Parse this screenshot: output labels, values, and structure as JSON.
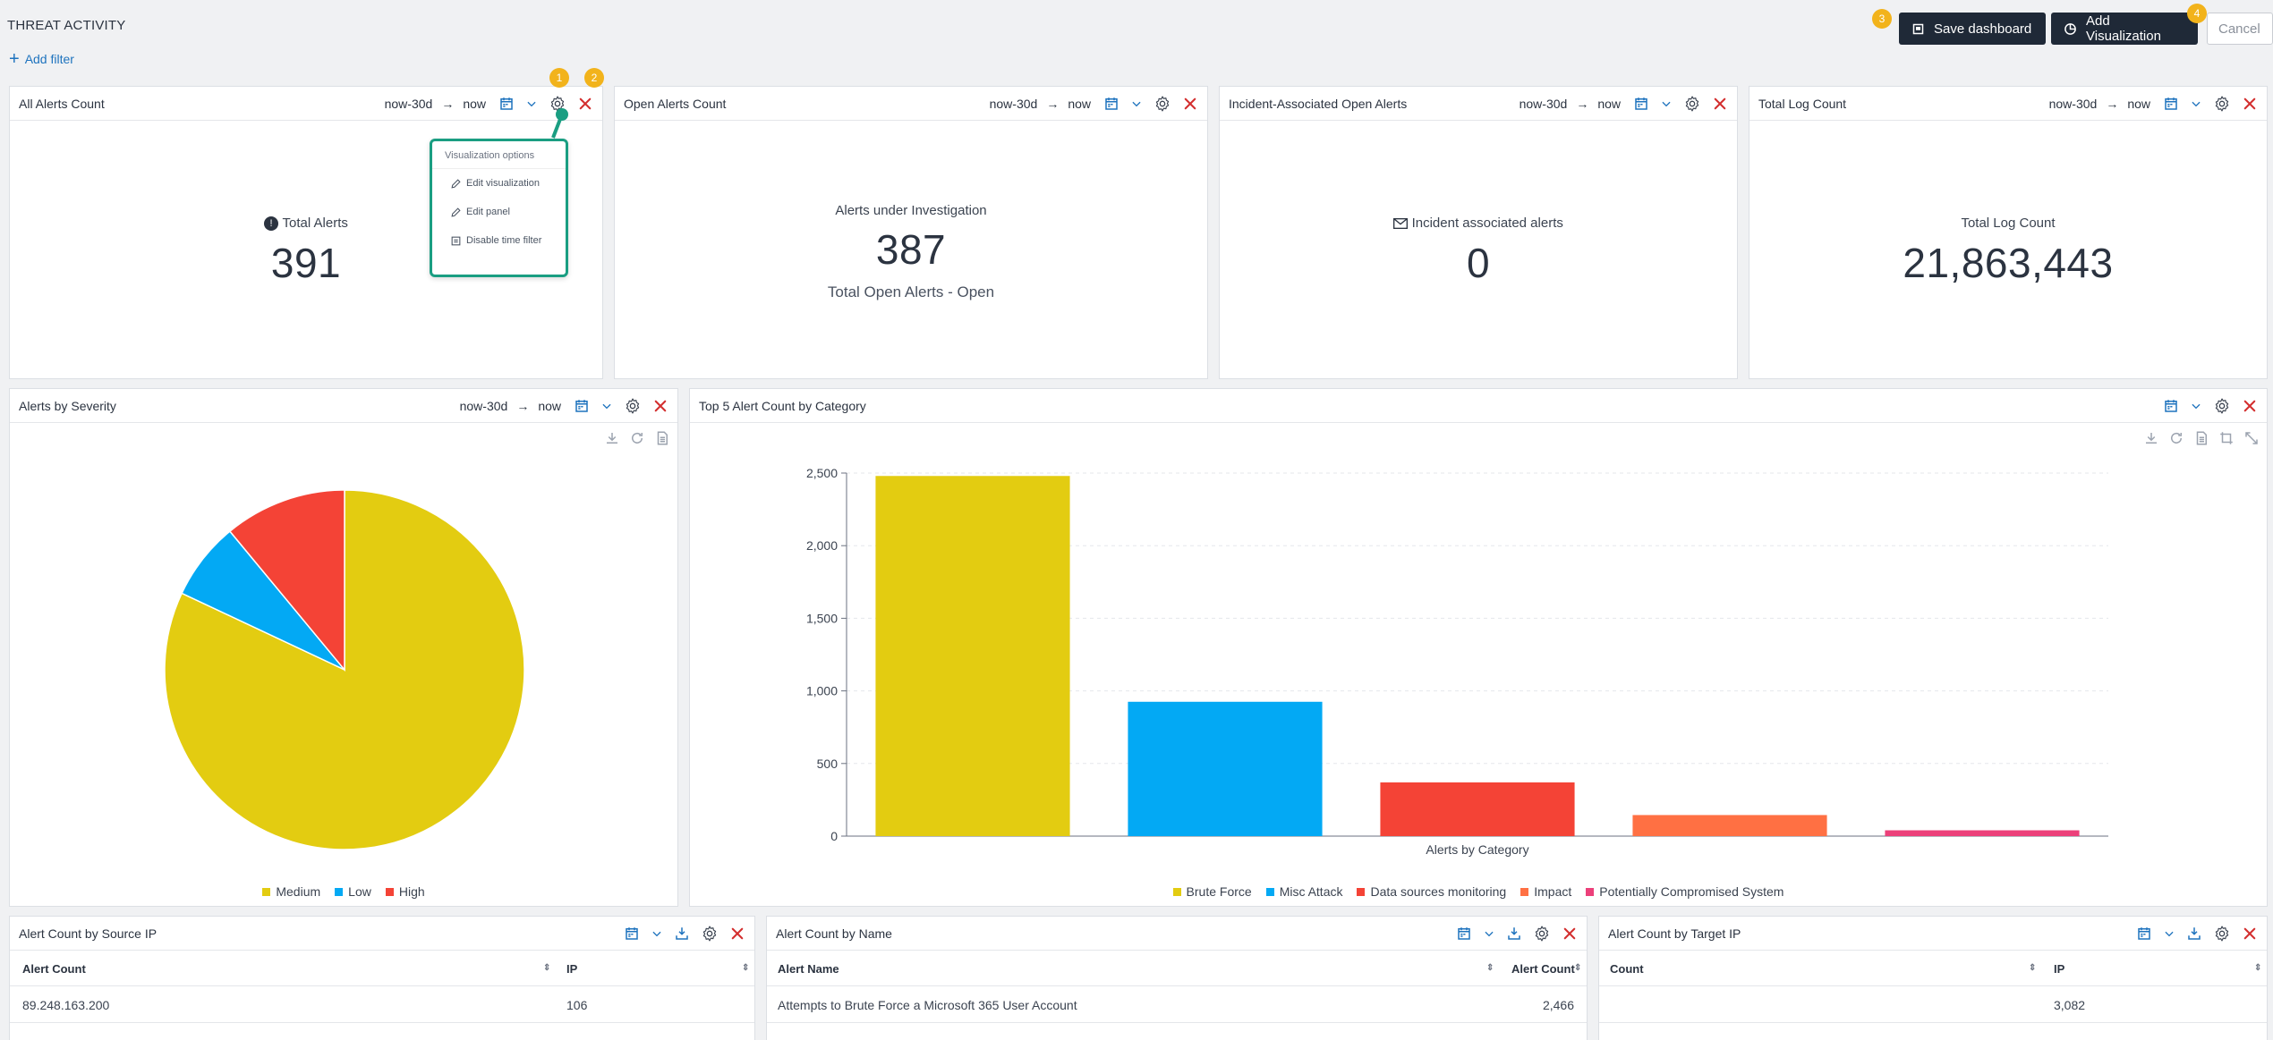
{
  "header": {
    "title": "THREAT ACTIVITY",
    "add_filter": "Add filter",
    "save_dashboard": "Save dashboard",
    "add_visualization": "Add Visualization",
    "cancel": "Cancel",
    "badges": [
      "1",
      "2",
      "3",
      "4"
    ]
  },
  "time": {
    "from": "now-30d",
    "arrow": "→",
    "to": "now"
  },
  "panels": {
    "all_alerts": {
      "title": "All Alerts Count",
      "label": "Total Alerts",
      "value": "391"
    },
    "open_alerts": {
      "title": "Open Alerts Count",
      "label": "Alerts under Investigation",
      "value": "387",
      "sub": "Total Open Alerts - Open"
    },
    "incident_alerts": {
      "title": "Incident-Associated Open Alerts",
      "label": "Incident associated alerts",
      "value": "0"
    },
    "log_count": {
      "title": "Total Log Count",
      "label": "Total Log Count",
      "value": "21,863,443"
    },
    "severity": {
      "title": "Alerts by Severity"
    },
    "top5": {
      "title": "Top 5 Alert Count by Category"
    },
    "by_source_ip": {
      "title": "Alert Count by Source IP",
      "columns": [
        "Alert Count",
        "IP"
      ],
      "rows": [
        [
          "89.248.163.200",
          "106"
        ]
      ]
    },
    "by_name": {
      "title": "Alert Count by Name",
      "columns": [
        "Alert Name",
        "Alert Count"
      ],
      "rows": [
        [
          "Attempts to Brute Force a Microsoft 365 User Account",
          "2,466"
        ]
      ]
    },
    "by_target_ip": {
      "title": "Alert Count by Target IP",
      "columns": [
        "Count",
        "IP"
      ],
      "rows": [
        [
          "",
          "3,082"
        ]
      ]
    }
  },
  "viz_menu": {
    "header": "Visualization options",
    "items": [
      "Edit visualization",
      "Edit panel",
      "Disable time filter"
    ]
  },
  "colors": {
    "accent": "#1e73be",
    "close": "#d32f2f",
    "menu_border": "#1a9e82",
    "badge": "#f2b31b"
  },
  "chart_data": [
    {
      "type": "pie",
      "title": "Alerts by Severity",
      "categories": [
        "Medium",
        "Low",
        "High"
      ],
      "values": [
        82,
        7,
        11
      ],
      "colors": [
        "#e3cc11",
        "#03a9f4",
        "#f44336"
      ],
      "legend": "bottom"
    },
    {
      "type": "bar",
      "title": "Top 5 Alert Count by Category",
      "xlabel": "Alerts by Category",
      "ylabel": "",
      "categories": [
        "Brute Force",
        "Misc Attack",
        "Data sources monitoring",
        "Impact",
        "Potentially Compromised System"
      ],
      "values": [
        2480,
        925,
        370,
        145,
        40
      ],
      "colors": [
        "#e3cc11",
        "#03a9f4",
        "#f44336",
        "#ff7043",
        "#ec407a"
      ],
      "yticks": [
        "0",
        "500",
        "1,000",
        "1,500",
        "2,000",
        "2,500"
      ],
      "ylim": [
        0,
        2500
      ],
      "grid": true,
      "legend": "bottom"
    }
  ]
}
